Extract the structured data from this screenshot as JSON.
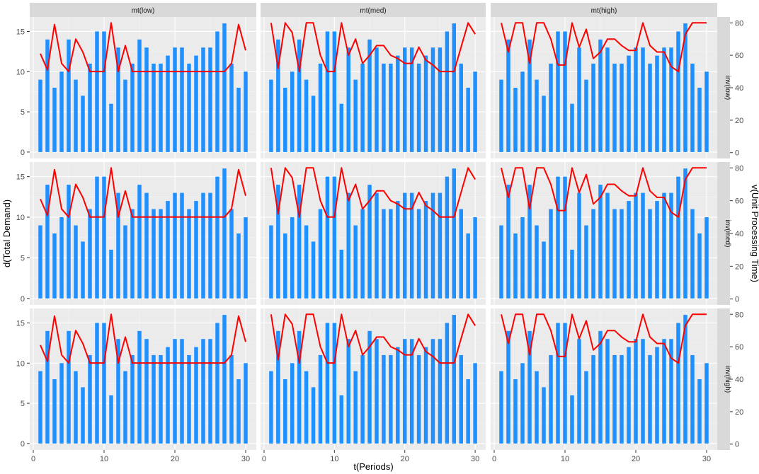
{
  "chart_data": {
    "type": "bar",
    "facet": {
      "cols": [
        "mt(low)",
        "mt(med)",
        "mt(high)"
      ],
      "rows": [
        "inv(low)",
        "inv(med)",
        "inv(high)"
      ]
    },
    "xlabel": "t(Periods)",
    "ylabel": "d(Total Demand)",
    "ylabel_right": "v(Unit Processing Time)",
    "x_ticks": [
      0,
      10,
      20,
      30
    ],
    "y_ticks": [
      0,
      5,
      10,
      15
    ],
    "y2_ticks": [
      0,
      20,
      40,
      60,
      80
    ],
    "xlim": [
      -0.5,
      31.5
    ],
    "ylim": [
      -0.8,
      16.8
    ],
    "y2lim": [
      -3.6,
      83.6
    ],
    "x": [
      1,
      2,
      3,
      4,
      5,
      6,
      7,
      8,
      9,
      10,
      11,
      12,
      13,
      14,
      15,
      16,
      17,
      18,
      19,
      20,
      21,
      22,
      23,
      24,
      25,
      26,
      27,
      28,
      29,
      30
    ],
    "demand": [
      9,
      14,
      8,
      10,
      14,
      9,
      7,
      11,
      15,
      15,
      6,
      13,
      9,
      11,
      14,
      13,
      11,
      11,
      12,
      13,
      13,
      11,
      12,
      13,
      13,
      15,
      16,
      11,
      8,
      10
    ],
    "series": [
      {
        "name": "mt(low)",
        "values": [
          61,
          51,
          79,
          55,
          50,
          70,
          62,
          50,
          50,
          50,
          80,
          50,
          66,
          50,
          50,
          50,
          50,
          50,
          50,
          50,
          50,
          50,
          50,
          50,
          50,
          50,
          50,
          55,
          79,
          63
        ]
      },
      {
        "name": "mt(med)",
        "values": [
          80,
          52,
          80,
          74,
          50,
          80,
          80,
          60,
          50,
          50,
          80,
          60,
          70,
          55,
          60,
          66,
          66,
          60,
          58,
          55,
          55,
          65,
          57,
          54,
          50,
          50,
          50,
          65,
          80,
          73
        ]
      },
      {
        "name": "mt(high)",
        "values": [
          80,
          62,
          80,
          80,
          55,
          80,
          80,
          70,
          54,
          54,
          80,
          65,
          76,
          58,
          62,
          70,
          70,
          66,
          63,
          63,
          80,
          66,
          62,
          62,
          53,
          50,
          73,
          80,
          80,
          80
        ]
      }
    ]
  }
}
